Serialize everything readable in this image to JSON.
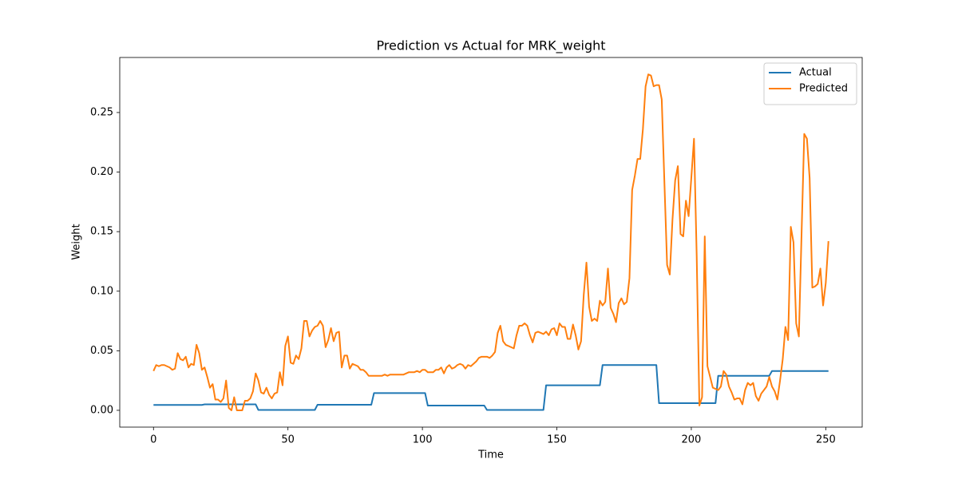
{
  "chart_data": {
    "type": "line",
    "title": "Prediction vs Actual for MRK_weight",
    "x_label": "Time",
    "y_label": "Weight",
    "x": [
      0,
      1,
      2,
      3,
      4,
      5,
      6,
      7,
      8,
      9,
      10,
      11,
      12,
      13,
      14,
      15,
      16,
      17,
      18,
      19,
      20,
      21,
      22,
      23,
      24,
      25,
      26,
      27,
      28,
      29,
      30,
      31,
      32,
      33,
      34,
      35,
      36,
      37,
      38,
      39,
      40,
      41,
      42,
      43,
      44,
      45,
      46,
      47,
      48,
      49,
      50,
      51,
      52,
      53,
      54,
      55,
      56,
      57,
      58,
      59,
      60,
      61,
      62,
      63,
      64,
      65,
      66,
      67,
      68,
      69,
      70,
      71,
      72,
      73,
      74,
      75,
      76,
      77,
      78,
      79,
      80,
      81,
      82,
      83,
      84,
      85,
      86,
      87,
      88,
      89,
      90,
      91,
      92,
      93,
      94,
      95,
      96,
      97,
      98,
      99,
      100,
      101,
      102,
      103,
      104,
      105,
      106,
      107,
      108,
      109,
      110,
      111,
      112,
      113,
      114,
      115,
      116,
      117,
      118,
      119,
      120,
      121,
      122,
      123,
      124,
      125,
      126,
      127,
      128,
      129,
      130,
      131,
      132,
      133,
      134,
      135,
      136,
      137,
      138,
      139,
      140,
      141,
      142,
      143,
      144,
      145,
      146,
      147,
      148,
      149,
      150,
      151,
      152,
      153,
      154,
      155,
      156,
      157,
      158,
      159,
      160,
      161,
      162,
      163,
      164,
      165,
      166,
      167,
      168,
      169,
      170,
      171,
      172,
      173,
      174,
      175,
      176,
      177,
      178,
      179,
      180,
      181,
      182,
      183,
      184,
      185,
      186,
      187,
      188,
      189,
      190,
      191,
      192,
      193,
      194,
      195,
      196,
      197,
      198,
      199,
      200,
      201,
      202,
      203,
      204,
      205,
      206,
      207,
      208,
      209,
      210,
      211,
      212,
      213,
      214,
      215,
      216,
      217,
      218,
      219,
      220,
      221,
      222,
      223,
      224,
      225,
      226,
      227,
      228,
      229,
      230,
      231,
      232,
      233,
      234,
      235,
      236,
      237,
      238,
      239,
      240,
      241,
      242,
      243,
      244,
      245,
      246,
      247,
      248,
      249,
      250,
      251
    ],
    "series": [
      {
        "name": "Actual",
        "color": "#1f77b4",
        "values": [
          0.0045,
          0.0045,
          0.0045,
          0.0045,
          0.0045,
          0.0045,
          0.0045,
          0.0045,
          0.0045,
          0.0045,
          0.0045,
          0.0045,
          0.0045,
          0.0045,
          0.0045,
          0.0045,
          0.0045,
          0.0045,
          0.0045,
          0.005,
          0.005,
          0.005,
          0.005,
          0.005,
          0.005,
          0.005,
          0.005,
          0.005,
          0.005,
          0.005,
          0.005,
          0.005,
          0.005,
          0.005,
          0.005,
          0.005,
          0.005,
          0.005,
          0.005,
          0.0003,
          0.0003,
          0.0003,
          0.0003,
          0.0003,
          0.0003,
          0.0003,
          0.0003,
          0.0003,
          0.0003,
          0.0003,
          0.0003,
          0.0003,
          0.0003,
          0.0003,
          0.0003,
          0.0003,
          0.0003,
          0.0003,
          0.0003,
          0.0003,
          0.0003,
          0.0047,
          0.0047,
          0.0047,
          0.0047,
          0.0047,
          0.0047,
          0.0047,
          0.0047,
          0.0047,
          0.0047,
          0.0047,
          0.0047,
          0.0047,
          0.0047,
          0.0047,
          0.0047,
          0.0047,
          0.0047,
          0.0047,
          0.0047,
          0.0047,
          0.0145,
          0.0145,
          0.0145,
          0.0145,
          0.0145,
          0.0145,
          0.0145,
          0.0145,
          0.0145,
          0.0145,
          0.0145,
          0.0145,
          0.0145,
          0.0145,
          0.0145,
          0.0145,
          0.0145,
          0.0145,
          0.0145,
          0.0145,
          0.004,
          0.004,
          0.004,
          0.004,
          0.004,
          0.004,
          0.004,
          0.004,
          0.004,
          0.004,
          0.004,
          0.004,
          0.004,
          0.004,
          0.004,
          0.004,
          0.004,
          0.004,
          0.004,
          0.004,
          0.004,
          0.004,
          0.0003,
          0.0003,
          0.0003,
          0.0003,
          0.0003,
          0.0003,
          0.0003,
          0.0003,
          0.0003,
          0.0003,
          0.0003,
          0.0003,
          0.0003,
          0.0003,
          0.0003,
          0.0003,
          0.0003,
          0.0003,
          0.0003,
          0.0003,
          0.0003,
          0.0003,
          0.021,
          0.021,
          0.021,
          0.021,
          0.021,
          0.021,
          0.021,
          0.021,
          0.021,
          0.021,
          0.021,
          0.021,
          0.021,
          0.021,
          0.021,
          0.021,
          0.021,
          0.021,
          0.021,
          0.021,
          0.021,
          0.038,
          0.038,
          0.038,
          0.038,
          0.038,
          0.038,
          0.038,
          0.038,
          0.038,
          0.038,
          0.038,
          0.038,
          0.038,
          0.038,
          0.038,
          0.038,
          0.038,
          0.038,
          0.038,
          0.038,
          0.038,
          0.006,
          0.006,
          0.006,
          0.006,
          0.006,
          0.006,
          0.006,
          0.006,
          0.006,
          0.006,
          0.006,
          0.006,
          0.006,
          0.006,
          0.006,
          0.006,
          0.006,
          0.006,
          0.006,
          0.006,
          0.006,
          0.006,
          0.029,
          0.029,
          0.029,
          0.029,
          0.029,
          0.029,
          0.029,
          0.029,
          0.029,
          0.029,
          0.029,
          0.029,
          0.029,
          0.029,
          0.029,
          0.029,
          0.029,
          0.029,
          0.029,
          0.029,
          0.033,
          0.033,
          0.033,
          0.033,
          0.033,
          0.033,
          0.033,
          0.033,
          0.033,
          0.033,
          0.033,
          0.033,
          0.033,
          0.033,
          0.033,
          0.033,
          0.033,
          0.033,
          0.033,
          0.033,
          0.033,
          0.033
        ]
      },
      {
        "name": "Predicted",
        "color": "#ff7f0e",
        "values": [
          0.033,
          0.038,
          0.037,
          0.038,
          0.038,
          0.037,
          0.036,
          0.034,
          0.035,
          0.048,
          0.043,
          0.042,
          0.045,
          0.036,
          0.039,
          0.038,
          0.055,
          0.048,
          0.034,
          0.036,
          0.028,
          0.019,
          0.022,
          0.009,
          0.009,
          0.007,
          0.01,
          0.025,
          0.002,
          0.0,
          0.011,
          0.0,
          0.0,
          0.0,
          0.008,
          0.008,
          0.01,
          0.016,
          0.031,
          0.025,
          0.015,
          0.014,
          0.019,
          0.013,
          0.01,
          0.014,
          0.015,
          0.032,
          0.021,
          0.054,
          0.062,
          0.04,
          0.039,
          0.046,
          0.043,
          0.052,
          0.075,
          0.075,
          0.062,
          0.067,
          0.07,
          0.071,
          0.075,
          0.071,
          0.053,
          0.059,
          0.069,
          0.058,
          0.065,
          0.066,
          0.036,
          0.046,
          0.046,
          0.035,
          0.039,
          0.038,
          0.037,
          0.034,
          0.034,
          0.032,
          0.029,
          0.029,
          0.029,
          0.029,
          0.029,
          0.029,
          0.03,
          0.029,
          0.03,
          0.03,
          0.03,
          0.03,
          0.03,
          0.03,
          0.031,
          0.032,
          0.032,
          0.032,
          0.033,
          0.032,
          0.034,
          0.034,
          0.032,
          0.032,
          0.032,
          0.034,
          0.034,
          0.036,
          0.031,
          0.036,
          0.038,
          0.035,
          0.036,
          0.038,
          0.039,
          0.038,
          0.035,
          0.038,
          0.037,
          0.039,
          0.041,
          0.044,
          0.045,
          0.045,
          0.045,
          0.044,
          0.046,
          0.049,
          0.065,
          0.071,
          0.058,
          0.055,
          0.054,
          0.053,
          0.052,
          0.063,
          0.071,
          0.071,
          0.073,
          0.071,
          0.063,
          0.057,
          0.065,
          0.066,
          0.065,
          0.064,
          0.066,
          0.063,
          0.068,
          0.069,
          0.063,
          0.073,
          0.07,
          0.07,
          0.06,
          0.06,
          0.072,
          0.063,
          0.051,
          0.058,
          0.097,
          0.124,
          0.087,
          0.075,
          0.077,
          0.075,
          0.092,
          0.088,
          0.091,
          0.119,
          0.086,
          0.081,
          0.074,
          0.09,
          0.094,
          0.089,
          0.091,
          0.111,
          0.185,
          0.197,
          0.211,
          0.211,
          0.236,
          0.272,
          0.282,
          0.281,
          0.272,
          0.273,
          0.273,
          0.261,
          0.191,
          0.122,
          0.114,
          0.16,
          0.193,
          0.205,
          0.148,
          0.146,
          0.176,
          0.163,
          0.195,
          0.228,
          0.13,
          0.004,
          0.011,
          0.146,
          0.037,
          0.028,
          0.019,
          0.018,
          0.017,
          0.02,
          0.033,
          0.03,
          0.02,
          0.015,
          0.009,
          0.01,
          0.01,
          0.005,
          0.017,
          0.023,
          0.021,
          0.023,
          0.012,
          0.008,
          0.014,
          0.017,
          0.02,
          0.028,
          0.02,
          0.016,
          0.009,
          0.025,
          0.043,
          0.07,
          0.059,
          0.154,
          0.141,
          0.073,
          0.062,
          0.148,
          0.232,
          0.228,
          0.195,
          0.103,
          0.104,
          0.106,
          0.119,
          0.088,
          0.107,
          0.142
        ]
      }
    ],
    "xlim": [
      -12.55,
      263.55
    ],
    "ylim": [
      -0.0141,
      0.2962
    ],
    "xticks": [
      0,
      50,
      100,
      150,
      200,
      250
    ],
    "yticks": [
      {
        "value": 0,
        "label": "0.00"
      },
      {
        "value": 0.05,
        "label": "0.05"
      },
      {
        "value": 0.1,
        "label": "0.10"
      },
      {
        "value": 0.15,
        "label": "0.15"
      },
      {
        "value": 0.2,
        "label": "0.20"
      },
      {
        "value": 0.25,
        "label": "0.25"
      }
    ],
    "legend": "upper right",
    "grid": false
  }
}
